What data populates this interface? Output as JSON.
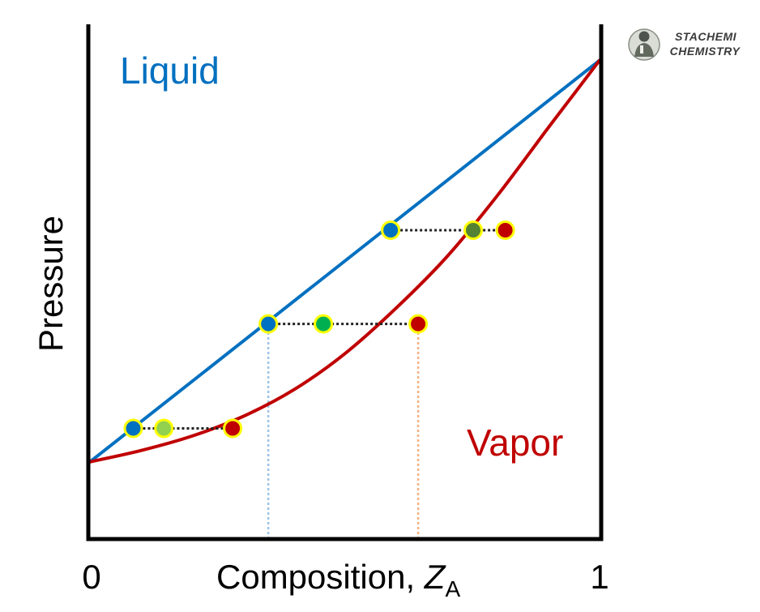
{
  "brand": {
    "line1": "STACHEMI",
    "line2": "CHEMISTRY",
    "logo_icon": "scientist-portrait-logo"
  },
  "labels": {
    "liquid": "Liquid",
    "vapor": "Vapor",
    "y_axis": "Pressure",
    "x_axis_main": "Composition, ",
    "x_axis_var": "Z",
    "x_axis_sub": "A",
    "x_min": "0",
    "x_max": "1"
  },
  "colors": {
    "liquid_line": "#0070C0",
    "vapor_line": "#C00000",
    "marker_outline": "#FFFF00",
    "tie_line": "#222222",
    "guide_liquid": "#9DC3E6",
    "guide_vapor": "#F4B183",
    "mix_low": "#92D050",
    "mix_mid": "#00B050",
    "mix_high": "#548235"
  },
  "chart_data": {
    "type": "line",
    "xlim": [
      0,
      1
    ],
    "ylim": [
      0,
      1
    ],
    "series": [
      {
        "key": "liquid",
        "kind": "bubble-line",
        "x": [
          0,
          1
        ],
        "y": [
          0.15,
          0.93
        ]
      },
      {
        "key": "vapor",
        "kind": "dew-curve",
        "x": [
          0,
          0.1,
          0.2,
          0.3,
          0.4,
          0.5,
          0.6,
          0.7,
          0.8,
          0.9,
          0.95,
          1
        ],
        "y": [
          0.15,
          0.172,
          0.2,
          0.238,
          0.29,
          0.36,
          0.448,
          0.548,
          0.668,
          0.8,
          0.865,
          0.93
        ]
      }
    ],
    "tie_lines": [
      {
        "y": 0.215,
        "liquid_x": 0.085,
        "mixture_x": 0.145,
        "vapor_x": 0.28,
        "mixture_color": "#92D050"
      },
      {
        "y": 0.418,
        "liquid_x": 0.35,
        "mixture_x": 0.458,
        "vapor_x": 0.644,
        "mixture_color": "#00B050"
      },
      {
        "y": 0.6,
        "liquid_x": 0.59,
        "mixture_x": 0.752,
        "vapor_x": 0.815,
        "mixture_color": "#548235"
      }
    ],
    "guide_lines": [
      {
        "x": 0.35,
        "from_y": 0,
        "to_y": 0.418,
        "key": "liquid"
      },
      {
        "x": 0.644,
        "from_y": 0,
        "to_y": 0.418,
        "key": "vapor"
      }
    ]
  }
}
